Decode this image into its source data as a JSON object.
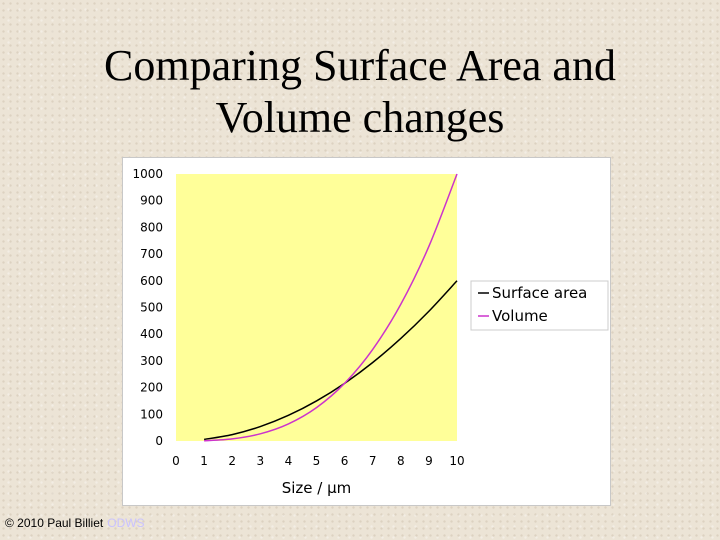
{
  "slide": {
    "title_line1": "Comparing Surface Area and",
    "title_line2": "Volume changes"
  },
  "footer": {
    "copyright": "© 2010 Paul Billiet",
    "link": "ODWS"
  },
  "colors": {
    "plot_bg": "#ffff99",
    "surface_area": "#000000",
    "volume": "#cc33cc"
  },
  "chart_data": {
    "type": "line",
    "title": "",
    "xlabel": "Size / µm",
    "ylabel": "",
    "xlim": [
      0,
      10
    ],
    "ylim": [
      0,
      1000
    ],
    "xticks": [
      0,
      1,
      2,
      3,
      4,
      5,
      6,
      7,
      8,
      9,
      10
    ],
    "yticks": [
      0,
      100,
      200,
      300,
      400,
      500,
      600,
      700,
      800,
      900,
      1000
    ],
    "grid": false,
    "legend_position": "right",
    "x": [
      1,
      2,
      3,
      4,
      5,
      6,
      7,
      8,
      9,
      10
    ],
    "series": [
      {
        "name": "Surface area",
        "color": "#000000",
        "values": [
          6,
          24,
          54,
          96,
          150,
          216,
          294,
          384,
          486,
          600
        ]
      },
      {
        "name": "Volume",
        "color": "#cc33cc",
        "values": [
          1,
          8,
          27,
          64,
          125,
          216,
          343,
          512,
          729,
          1000
        ]
      }
    ]
  }
}
